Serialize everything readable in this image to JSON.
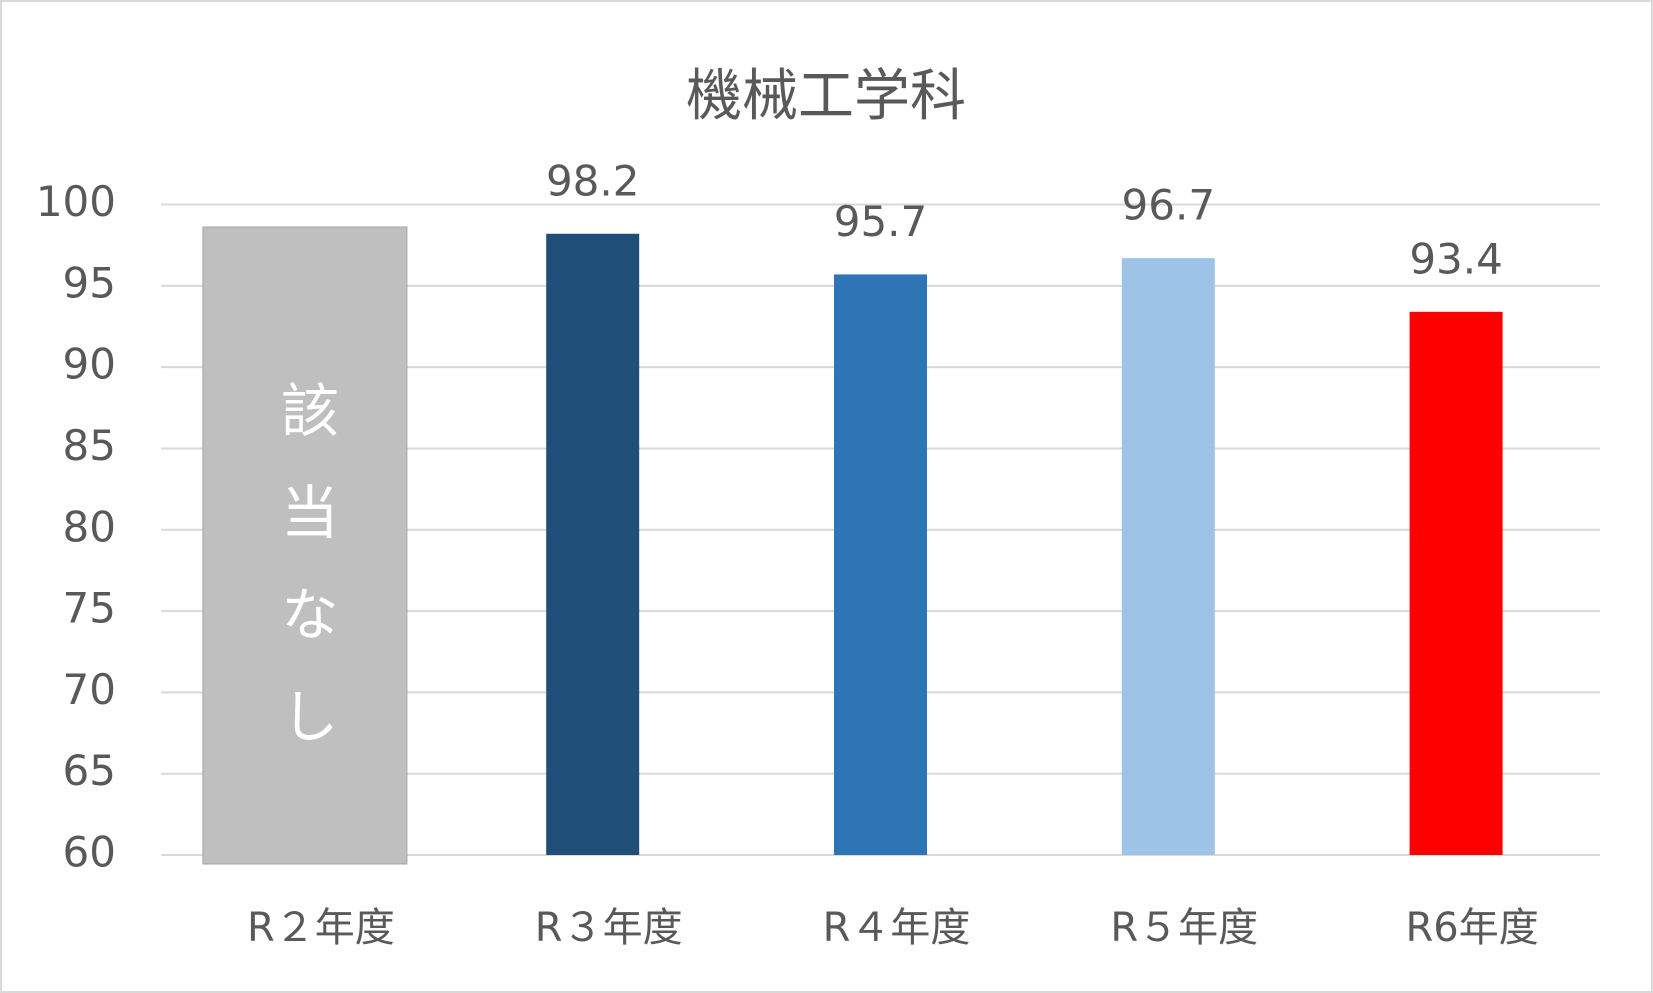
{
  "chart_data": {
    "type": "bar",
    "title": "機械工学科",
    "categories": [
      "R２年度",
      "R３年度",
      "R４年度",
      "R５年度",
      "R6年度"
    ],
    "values": [
      null,
      98.2,
      95.7,
      96.7,
      93.4
    ],
    "colors": [
      "#bfbfbf",
      "#1f4e79",
      "#2e75b6",
      "#9dc3e6",
      "#ff0000"
    ],
    "no_data_label": "該当なし",
    "ylim": [
      60,
      100
    ],
    "yticks": [
      60,
      65,
      70,
      75,
      80,
      85,
      90,
      95,
      100
    ],
    "grid": true
  }
}
